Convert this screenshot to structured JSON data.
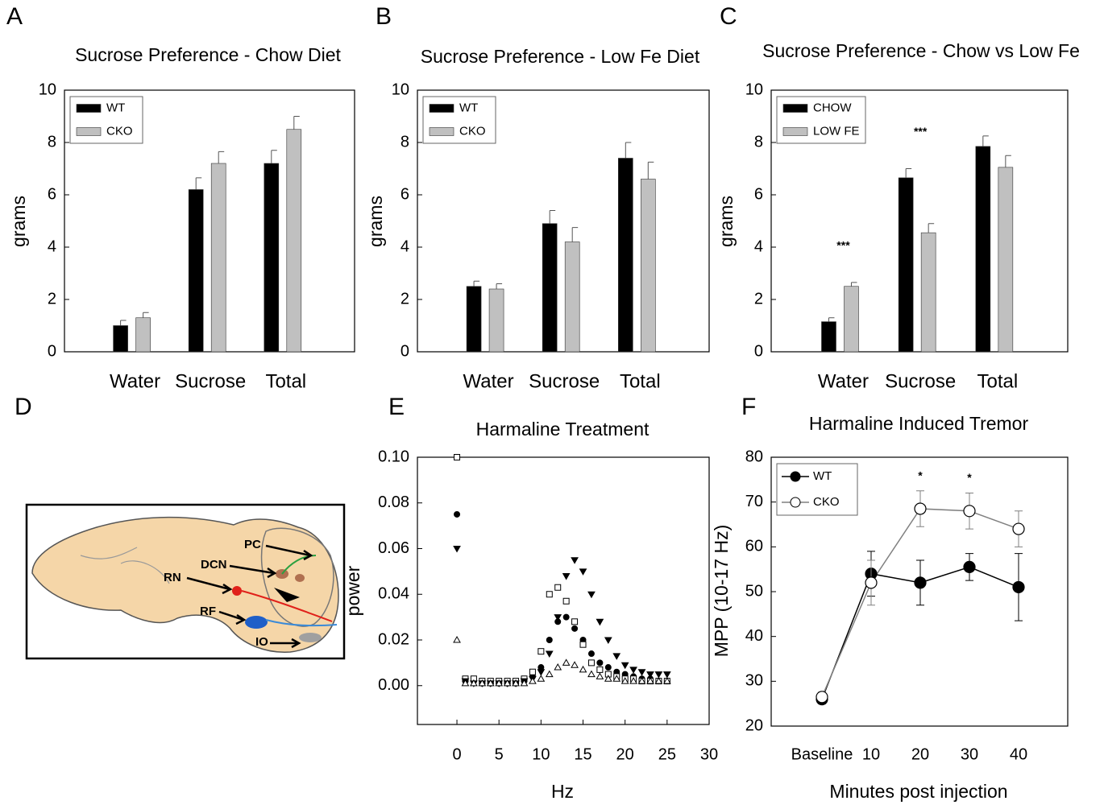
{
  "chart_data": [
    {
      "panel": "A",
      "type": "bar",
      "title": "Sucrose Preference - Chow  Diet",
      "ylabel": "grams",
      "categories": [
        "Water",
        "Sucrose",
        "Total"
      ],
      "series": [
        {
          "name": "WT",
          "color": "#000000",
          "values": [
            1.0,
            6.2,
            7.2
          ],
          "error": [
            0.2,
            0.45,
            0.5
          ]
        },
        {
          "name": "CKO",
          "color": "#c0c0c0",
          "values": [
            1.3,
            7.2,
            8.5
          ],
          "error": [
            0.2,
            0.45,
            0.5
          ]
        }
      ],
      "ylim": [
        0,
        10
      ],
      "yticks": [
        0,
        2,
        4,
        6,
        8,
        10
      ],
      "legend": "upper left"
    },
    {
      "panel": "B",
      "type": "bar",
      "title": "Sucrose Preference - Low Fe Diet",
      "ylabel": "grams",
      "categories": [
        "Water",
        "Sucrose",
        "Total"
      ],
      "series": [
        {
          "name": "WT",
          "color": "#000000",
          "values": [
            2.5,
            4.9,
            7.4
          ],
          "error": [
            0.2,
            0.5,
            0.6
          ]
        },
        {
          "name": "CKO",
          "color": "#c0c0c0",
          "values": [
            2.4,
            4.2,
            6.6
          ],
          "error": [
            0.2,
            0.55,
            0.65
          ]
        }
      ],
      "ylim": [
        0,
        10
      ],
      "yticks": [
        0,
        2,
        4,
        6,
        8,
        10
      ],
      "legend": "upper left"
    },
    {
      "panel": "C",
      "type": "bar",
      "title": "Sucrose Preference - Chow vs Low Fe",
      "ylabel": "grams",
      "categories": [
        "Water",
        "Sucrose",
        "Total"
      ],
      "series": [
        {
          "name": "CHOW",
          "color": "#000000",
          "values": [
            1.15,
            6.65,
            7.85
          ],
          "error": [
            0.15,
            0.35,
            0.4
          ]
        },
        {
          "name": "LOW FE",
          "color": "#c0c0c0",
          "values": [
            2.5,
            4.55,
            7.05
          ],
          "error": [
            0.15,
            0.35,
            0.45
          ]
        }
      ],
      "annotations": [
        "***",
        "***",
        null
      ],
      "ylim": [
        0,
        10
      ],
      "yticks": [
        0,
        2,
        4,
        6,
        8,
        10
      ],
      "legend": "upper left"
    },
    {
      "panel": "E",
      "type": "scatter",
      "title": "Harmaline Treatment",
      "xlabel": "Hz",
      "ylabel": "power",
      "x": [
        0,
        1,
        2,
        3,
        4,
        5,
        6,
        7,
        8,
        9,
        10,
        11,
        12,
        13,
        14,
        15,
        16,
        17,
        18,
        19,
        20,
        21,
        22,
        23,
        24,
        25
      ],
      "series": [
        {
          "marker": "circle",
          "color": "#000000",
          "values": [
            0.075,
            0.002,
            0.002,
            0.001,
            0.001,
            0.001,
            0.001,
            0.001,
            0.002,
            0.004,
            0.008,
            0.02,
            0.028,
            0.03,
            0.025,
            0.02,
            0.014,
            0.01,
            0.008,
            0.006,
            0.005,
            0.004,
            0.003,
            0.003,
            0.002,
            0.002
          ]
        },
        {
          "marker": "square",
          "color": "#ffffff",
          "values": [
            0.1,
            0.003,
            0.003,
            0.002,
            0.002,
            0.002,
            0.002,
            0.002,
            0.003,
            0.006,
            0.015,
            0.04,
            0.043,
            0.037,
            0.028,
            0.018,
            0.01,
            0.007,
            0.005,
            0.004,
            0.003,
            0.003,
            0.002,
            0.002,
            0.002,
            0.002
          ]
        },
        {
          "marker": "triangle-down",
          "color": "#000000",
          "values": [
            0.06,
            0.002,
            0.001,
            0.001,
            0.001,
            0.001,
            0.001,
            0.001,
            0.002,
            0.003,
            0.006,
            0.014,
            0.03,
            0.048,
            0.055,
            0.05,
            0.04,
            0.028,
            0.02,
            0.013,
            0.009,
            0.007,
            0.006,
            0.005,
            0.005,
            0.005
          ]
        },
        {
          "marker": "triangle-up",
          "color": "#ffffff",
          "values": [
            0.02,
            0.001,
            0.001,
            0.001,
            0.001,
            0.001,
            0.001,
            0.001,
            0.001,
            0.002,
            0.003,
            0.005,
            0.008,
            0.01,
            0.009,
            0.007,
            0.005,
            0.004,
            0.003,
            0.003,
            0.002,
            0.002,
            0.002,
            0.002,
            0.002,
            0.002
          ]
        }
      ],
      "xlim": [
        -4.7,
        30
      ],
      "xticks": [
        0,
        5,
        10,
        15,
        20,
        25,
        30
      ],
      "ylim": [
        -0.017,
        0.1
      ],
      "yticks": [
        {
          "value": 0,
          "label": "0.00"
        },
        0.02,
        0.04,
        0.06,
        0.08,
        {
          "value": 0.1,
          "label": "0.10"
        }
      ]
    },
    {
      "panel": "F",
      "type": "line",
      "title": "Harmaline Induced Tremor",
      "xlabel": "Minutes post injection",
      "ylabel": "MPP (10-17 Hz)",
      "categories": [
        "Baseline",
        "10",
        "20",
        "30",
        "40"
      ],
      "series": [
        {
          "name": "WT",
          "color": "#000000",
          "line_color": "#000000",
          "values": [
            26,
            54,
            52,
            55.5,
            51
          ],
          "error": [
            1,
            5,
            5,
            3,
            7.5
          ]
        },
        {
          "name": "CKO",
          "color": "#ffffff",
          "line_color": "#808080",
          "values": [
            26.5,
            52,
            68.5,
            68,
            64
          ],
          "error": [
            1,
            5,
            4,
            4,
            4
          ]
        }
      ],
      "annotations": [
        null,
        null,
        "*",
        "*",
        null
      ],
      "ylim": [
        20,
        80
      ],
      "yticks": [
        20,
        30,
        40,
        50,
        60,
        70,
        80
      ],
      "legend": "upper left"
    }
  ],
  "diagram": {
    "panel": "D",
    "labels": [
      "PC",
      "DCN",
      "RN",
      "RF",
      "IO"
    ]
  }
}
